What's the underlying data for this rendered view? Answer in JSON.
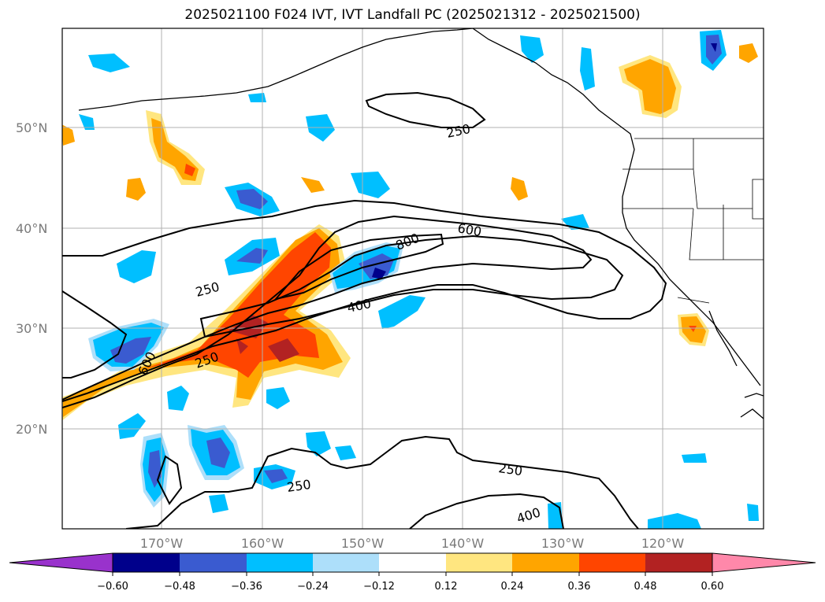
{
  "title": "2025021100 F024 IVT, IVT Landfall PC (2025021312 - 2025021500)",
  "latitude_labels": [
    "50°N",
    "40°N",
    "30°N",
    "20°N"
  ],
  "longitude_labels": [
    "170°W",
    "160°W",
    "150°W",
    "140°W",
    "130°W",
    "120°W"
  ],
  "colorbar": {
    "tick_labels": [
      "−0.60",
      "−0.48",
      "−0.36",
      "−0.24",
      "−0.12",
      "0.12",
      "0.24",
      "0.36",
      "0.48",
      "0.60"
    ],
    "colors": [
      "#9932CC",
      "#00008B",
      "#3A5BD0",
      "#00BFFF",
      "#ADDFFA",
      "#FFFFFF",
      "#FFE680",
      "#FFA500",
      "#FF4500",
      "#B22222",
      "#FF88AA"
    ]
  },
  "contour_labels": {
    "c250_north": "250",
    "c600_top": "600",
    "c800": "800",
    "c250_left": "250",
    "c400_mid": "400",
    "c250_low": "250",
    "c600_left": "600",
    "c250_south_e": "250",
    "c250_south_w": "250",
    "c400_south": "400"
  }
}
